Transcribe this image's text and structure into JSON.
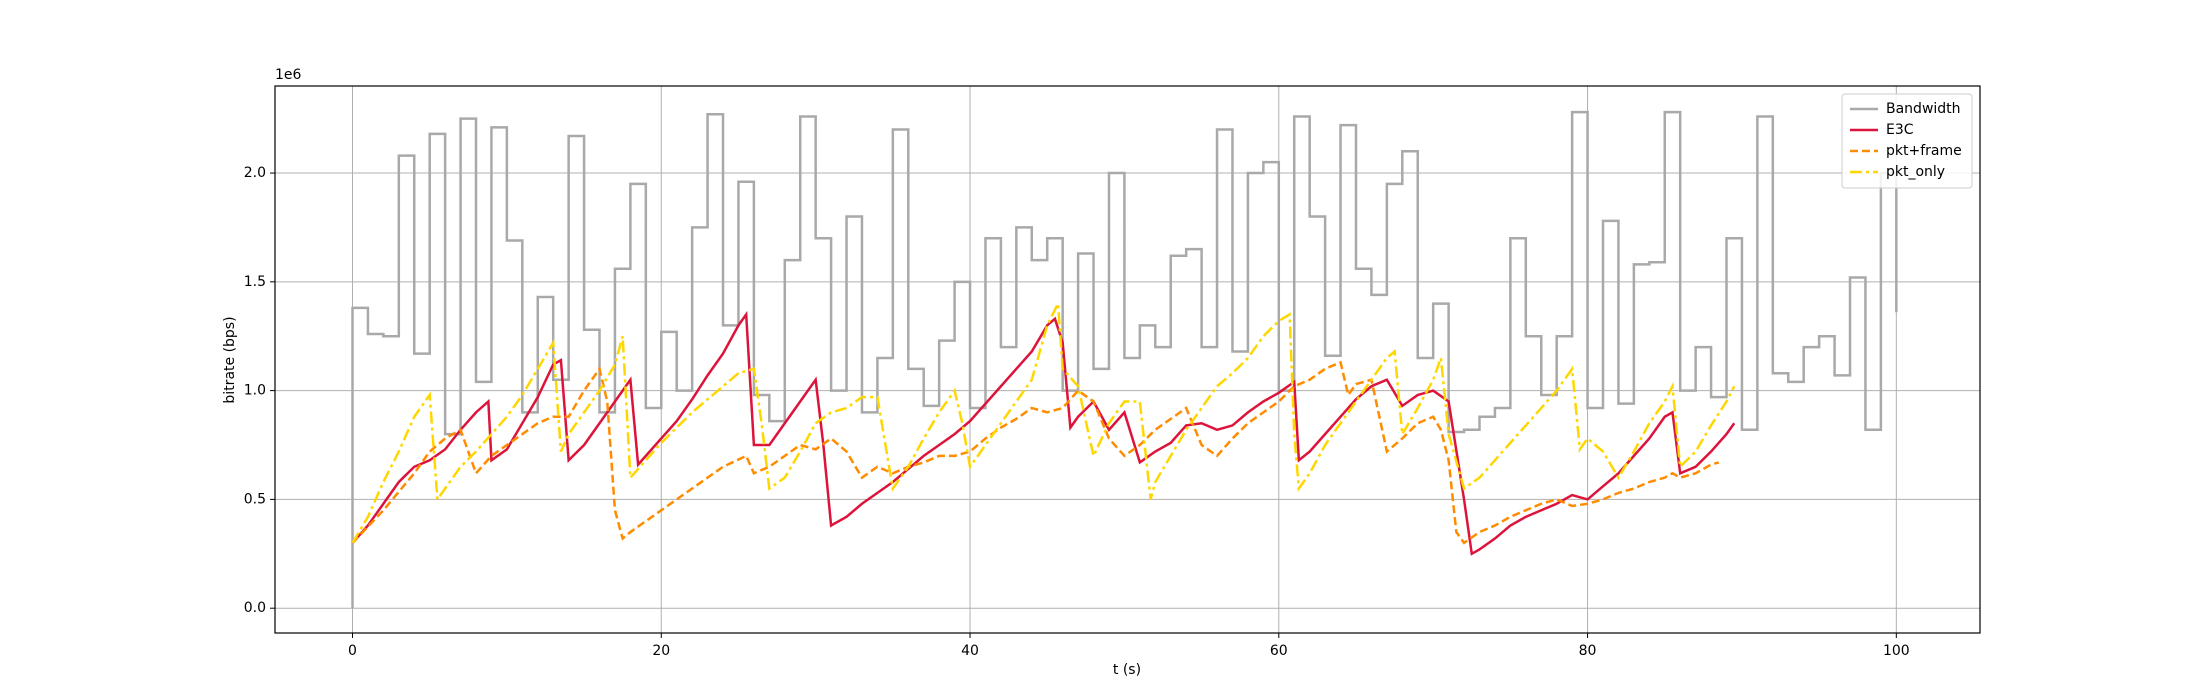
{
  "chart_data": {
    "type": "line",
    "xlabel": "t (s)",
    "ylabel": "bitrate (bps)",
    "y_offset_text": "1e6",
    "xlim": [
      -5.02,
      105.42
    ],
    "ylim": [
      -0.114,
      2.4
    ],
    "xticks": [
      0,
      20,
      40,
      60,
      80,
      100
    ],
    "yticks": [
      {
        "value": 0,
        "label": "0.0"
      },
      {
        "value": 0.5,
        "label": "0.5"
      },
      {
        "value": 1,
        "label": "1.0"
      },
      {
        "value": 1.5,
        "label": "1.5"
      },
      {
        "value": 2,
        "label": "2.0"
      }
    ],
    "grid": true,
    "legend": "upper right",
    "series": [
      {
        "name": "Bandwidth",
        "color": "#a9a9a9",
        "style": "steps",
        "x": [
          0,
          0,
          1,
          2,
          3,
          4,
          5,
          6,
          7,
          8,
          9,
          10,
          11,
          12,
          13,
          14,
          15,
          16,
          17,
          18,
          19,
          20,
          21,
          22,
          23,
          24,
          25,
          26,
          27,
          28,
          29,
          30,
          31,
          32,
          33,
          34,
          35,
          36,
          37,
          38,
          39,
          40,
          41,
          42,
          43,
          44,
          45,
          46,
          47,
          48,
          49,
          50,
          51,
          52,
          53,
          54,
          55,
          56,
          57,
          58,
          59,
          60,
          61,
          62,
          63,
          64,
          65,
          66,
          67,
          68,
          69,
          70,
          71,
          72,
          73,
          74,
          75,
          76,
          77,
          78,
          79,
          80,
          81,
          82,
          83,
          84,
          85,
          86,
          87,
          88,
          89,
          90,
          91,
          92,
          93,
          94,
          95,
          96,
          97,
          98,
          99,
          100
        ],
        "values": [
          0,
          1.38,
          1.26,
          1.25,
          2.08,
          1.17,
          2.18,
          0.8,
          2.25,
          1.04,
          2.21,
          1.69,
          0.9,
          1.43,
          1.05,
          2.17,
          1.28,
          0.9,
          1.56,
          1.95,
          0.92,
          1.27,
          1.0,
          1.75,
          2.27,
          1.3,
          1.96,
          0.98,
          0.86,
          1.6,
          2.26,
          1.7,
          1.0,
          1.8,
          0.9,
          1.15,
          2.2,
          1.1,
          0.93,
          1.23,
          1.5,
          0.92,
          1.7,
          1.2,
          1.75,
          1.6,
          1.7,
          1.0,
          1.63,
          1.1,
          2.0,
          1.15,
          1.3,
          1.2,
          1.62,
          1.65,
          1.2,
          2.2,
          1.18,
          2.0,
          2.05,
          1.0,
          2.26,
          1.8,
          1.16,
          2.22,
          1.56,
          1.44,
          1.95,
          2.1,
          1.15,
          1.4,
          0.81,
          0.82,
          0.88,
          0.92,
          1.7,
          1.25,
          0.98,
          1.25,
          2.28,
          0.92,
          1.78,
          0.94,
          1.58,
          1.59,
          2.28,
          1.0,
          1.2,
          0.97,
          1.7,
          0.82,
          2.26,
          1.08,
          1.04,
          1.2,
          1.25,
          1.07,
          1.52,
          0.82,
          2.0,
          1.36
        ]
      },
      {
        "name": "E3C",
        "color": "#dc143c",
        "style": "solid",
        "x": [
          0,
          1,
          2,
          3,
          4,
          5,
          6,
          7,
          8,
          8.8,
          9,
          10,
          11,
          12,
          13,
          13.5,
          14,
          15,
          16,
          17,
          18,
          18.5,
          19,
          20,
          21,
          22,
          23,
          24,
          25,
          25.5,
          26,
          27,
          28,
          29,
          30,
          30.5,
          31,
          32,
          33,
          34,
          35,
          36,
          37,
          38,
          39,
          40,
          41,
          42,
          43,
          44,
          45,
          45.5,
          46,
          46.5,
          47,
          48,
          49,
          50,
          51,
          52,
          53,
          54,
          55,
          56,
          57,
          58,
          59,
          60,
          61,
          61.3,
          62,
          63,
          64,
          65,
          66,
          67,
          68,
          69,
          70,
          71,
          72,
          72.5,
          73,
          74,
          75,
          76,
          77,
          78,
          79,
          80,
          81,
          82,
          83,
          84,
          85,
          85.5,
          86,
          87,
          88,
          89,
          89.5
        ],
        "values": [
          0.3,
          0.38,
          0.48,
          0.58,
          0.65,
          0.68,
          0.73,
          0.82,
          0.9,
          0.95,
          0.68,
          0.73,
          0.85,
          0.97,
          1.12,
          1.14,
          0.68,
          0.75,
          0.85,
          0.95,
          1.05,
          0.66,
          0.7,
          0.78,
          0.86,
          0.96,
          1.07,
          1.17,
          1.3,
          1.35,
          0.75,
          0.75,
          0.85,
          0.95,
          1.05,
          0.75,
          0.38,
          0.42,
          0.48,
          0.53,
          0.58,
          0.64,
          0.7,
          0.75,
          0.8,
          0.86,
          0.94,
          1.02,
          1.1,
          1.18,
          1.3,
          1.33,
          1.22,
          0.83,
          0.88,
          0.95,
          0.82,
          0.9,
          0.67,
          0.72,
          0.76,
          0.84,
          0.85,
          0.82,
          0.84,
          0.9,
          0.95,
          0.99,
          1.04,
          0.68,
          0.72,
          0.8,
          0.88,
          0.96,
          1.02,
          1.05,
          0.93,
          0.98,
          1.0,
          0.95,
          0.5,
          0.25,
          0.27,
          0.32,
          0.38,
          0.42,
          0.45,
          0.48,
          0.52,
          0.5,
          0.56,
          0.62,
          0.7,
          0.78,
          0.88,
          0.9,
          0.62,
          0.65,
          0.72,
          0.8,
          0.85
        ]
      },
      {
        "name": "pkt+frame",
        "color": "#ff8c00",
        "style": "dashed",
        "x": [
          0,
          2,
          4,
          5,
          6,
          7,
          8,
          9,
          10,
          11,
          12,
          13,
          14,
          15,
          16,
          16.5,
          17,
          17.5,
          18,
          20,
          22,
          24,
          25.5,
          26,
          27,
          28,
          29,
          30,
          31,
          32,
          33,
          34,
          35,
          36,
          37,
          38,
          39,
          40,
          41,
          42,
          43,
          44,
          45,
          46,
          47,
          48,
          49,
          50,
          51,
          52,
          53,
          54,
          55,
          56,
          57,
          58,
          59,
          60,
          61,
          62,
          63,
          64,
          64.5,
          65,
          66,
          67,
          68,
          69,
          70,
          70.5,
          71,
          71.5,
          72,
          73,
          74,
          75,
          76,
          77,
          78,
          79,
          80,
          81,
          82,
          83,
          84,
          85,
          85.5,
          86,
          87,
          88,
          88.5
        ],
        "values": [
          0.3,
          0.45,
          0.62,
          0.72,
          0.78,
          0.82,
          0.62,
          0.7,
          0.75,
          0.8,
          0.85,
          0.88,
          0.88,
          1.0,
          1.1,
          0.95,
          0.45,
          0.32,
          0.35,
          0.45,
          0.55,
          0.65,
          0.7,
          0.62,
          0.65,
          0.7,
          0.75,
          0.73,
          0.78,
          0.72,
          0.6,
          0.65,
          0.62,
          0.65,
          0.67,
          0.7,
          0.7,
          0.72,
          0.78,
          0.83,
          0.87,
          0.92,
          0.9,
          0.92,
          1.0,
          0.95,
          0.78,
          0.7,
          0.75,
          0.82,
          0.87,
          0.92,
          0.75,
          0.7,
          0.78,
          0.85,
          0.9,
          0.95,
          1.02,
          1.05,
          1.1,
          1.13,
          0.98,
          1.03,
          1.05,
          0.72,
          0.78,
          0.85,
          0.88,
          0.82,
          0.68,
          0.35,
          0.3,
          0.35,
          0.38,
          0.42,
          0.45,
          0.48,
          0.5,
          0.47,
          0.48,
          0.5,
          0.53,
          0.55,
          0.58,
          0.6,
          0.62,
          0.6,
          0.62,
          0.66,
          0.67
        ]
      },
      {
        "name": "pkt_only",
        "color": "#ffd700",
        "style": "dashdot",
        "x": [
          0,
          1,
          2,
          3,
          4,
          5,
          5.5,
          6,
          7,
          8,
          9,
          10,
          11,
          12,
          13,
          13.5,
          14,
          15,
          16,
          17,
          17.5,
          18,
          19,
          20,
          21,
          22,
          23,
          24,
          25,
          26,
          26.5,
          27,
          28,
          29,
          30,
          31,
          32,
          33,
          34,
          35,
          36,
          37,
          38,
          39,
          39.5,
          40,
          41,
          42,
          43,
          44,
          45,
          45.7,
          46,
          47,
          48,
          49,
          50,
          51,
          51.7,
          52,
          53,
          54,
          55,
          56,
          57,
          58,
          59,
          60,
          60.7,
          61,
          61.3,
          62,
          63,
          64,
          65,
          66,
          67,
          67.5,
          68,
          69,
          70,
          70.5,
          71,
          72,
          73,
          74,
          75,
          76,
          77,
          78,
          79,
          79.5,
          80,
          81,
          82,
          83,
          84,
          85,
          85.5,
          86,
          87,
          88,
          89,
          89.5
        ],
        "values": [
          0.3,
          0.42,
          0.58,
          0.72,
          0.88,
          0.98,
          0.5,
          0.55,
          0.65,
          0.72,
          0.8,
          0.88,
          0.98,
          1.1,
          1.22,
          0.72,
          0.8,
          0.9,
          1.0,
          1.12,
          1.25,
          0.6,
          0.68,
          0.76,
          0.83,
          0.9,
          0.96,
          1.02,
          1.08,
          1.1,
          0.85,
          0.55,
          0.6,
          0.72,
          0.85,
          0.9,
          0.92,
          0.97,
          0.97,
          0.55,
          0.65,
          0.78,
          0.9,
          1.0,
          0.85,
          0.65,
          0.75,
          0.85,
          0.95,
          1.05,
          1.3,
          1.4,
          1.1,
          1.02,
          0.7,
          0.85,
          0.95,
          0.95,
          0.5,
          0.58,
          0.7,
          0.82,
          0.92,
          1.02,
          1.08,
          1.15,
          1.25,
          1.32,
          1.35,
          0.8,
          0.55,
          0.62,
          0.75,
          0.85,
          0.95,
          1.05,
          1.15,
          1.18,
          0.8,
          0.92,
          1.05,
          1.15,
          0.8,
          0.55,
          0.6,
          0.68,
          0.76,
          0.84,
          0.92,
          1.0,
          1.1,
          0.73,
          0.78,
          0.72,
          0.6,
          0.72,
          0.85,
          0.95,
          1.02,
          0.65,
          0.72,
          0.84,
          0.95,
          1.02
        ]
      }
    ]
  }
}
